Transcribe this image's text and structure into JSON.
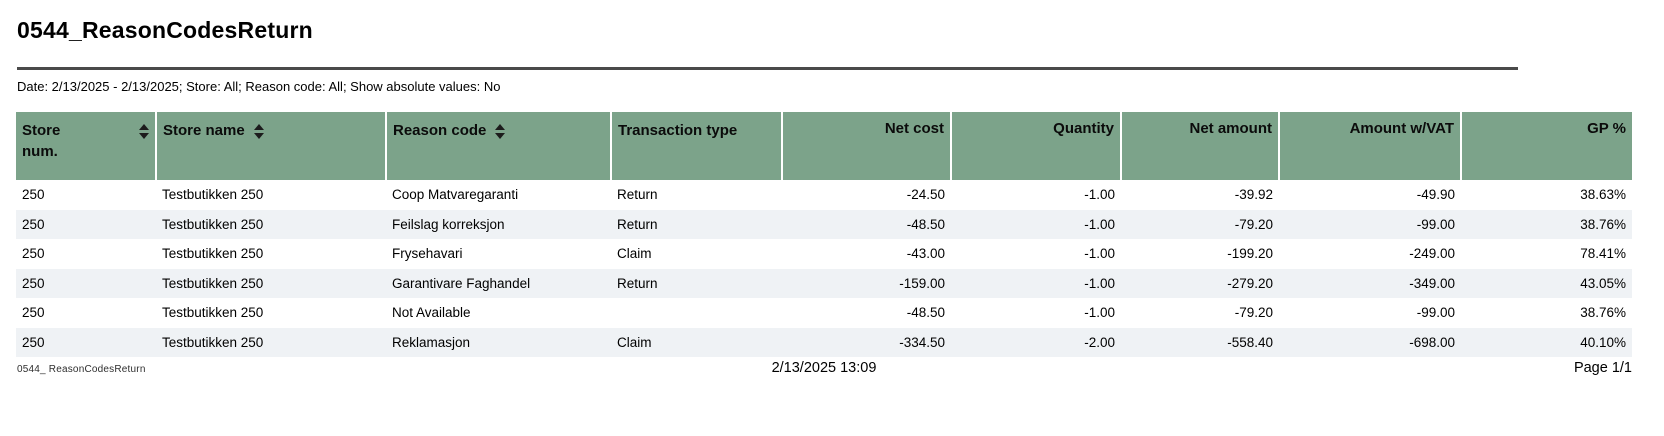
{
  "colors": {
    "header_bg": "#7CA38A",
    "stripe_bg": "#EFF2F5",
    "rule_color": "#4A4A4A"
  },
  "report": {
    "title": "0544_ReasonCodesReturn",
    "filters_line": "Date: 2/13/2025 - 2/13/2025; Store: All; Reason code: All; Show absolute values: No"
  },
  "table": {
    "columns": [
      {
        "label": "Store num.",
        "align": "left",
        "sortable": true,
        "sort_icon": "sort-asc-desc-icon"
      },
      {
        "label": "Store name",
        "align": "left",
        "sortable": true,
        "sort_icon": "sort-asc-desc-icon"
      },
      {
        "label": "Reason code",
        "align": "left",
        "sortable": true,
        "sort_icon": "sort-asc-desc-icon"
      },
      {
        "label": "Transaction type",
        "align": "left",
        "sortable": false
      },
      {
        "label": "Net cost",
        "align": "right",
        "sortable": false
      },
      {
        "label": "Quantity",
        "align": "right",
        "sortable": false
      },
      {
        "label": "Net amount",
        "align": "right",
        "sortable": false
      },
      {
        "label": "Amount w/VAT",
        "align": "right",
        "sortable": false
      },
      {
        "label": "GP %",
        "align": "right",
        "sortable": false
      }
    ],
    "rows": [
      [
        "250",
        "Testbutikken 250",
        "Coop Matvaregaranti",
        "Return",
        "-24.50",
        "-1.00",
        "-39.92",
        "-49.90",
        "38.63%"
      ],
      [
        "250",
        "Testbutikken 250",
        "Feilslag korreksjon",
        "Return",
        "-48.50",
        "-1.00",
        "-79.20",
        "-99.00",
        "38.76%"
      ],
      [
        "250",
        "Testbutikken 250",
        "Frysehavari",
        "Claim",
        "-43.00",
        "-1.00",
        "-199.20",
        "-249.00",
        "78.41%"
      ],
      [
        "250",
        "Testbutikken 250",
        "Garantivare Faghandel",
        "Return",
        "-159.00",
        "-1.00",
        "-279.20",
        "-349.00",
        "43.05%"
      ],
      [
        "250",
        "Testbutikken 250",
        "Not Available",
        "",
        "-48.50",
        "-1.00",
        "-79.20",
        "-99.00",
        "38.76%"
      ],
      [
        "250",
        "Testbutikken 250",
        "Reklamasjon",
        "Claim",
        "-334.50",
        "-2.00",
        "-558.40",
        "-698.00",
        "40.10%"
      ]
    ]
  },
  "footer": {
    "report_name": "0544_ ReasonCodesReturn",
    "timestamp": "2/13/2025 13:09",
    "page_label": "Page 1/1"
  }
}
